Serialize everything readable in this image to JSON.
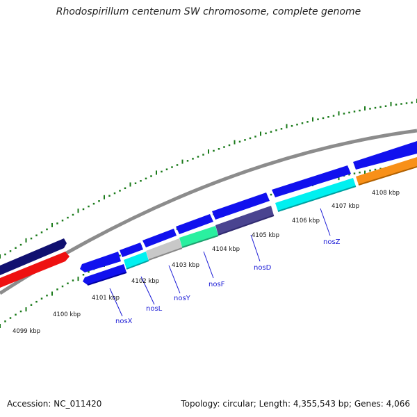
{
  "title": "Rhodospirillum centenum SW chromosome, complete genome",
  "footer": {
    "accession": "Accession: NC_011420",
    "topology": "Topology: circular; Length: 4,355,543 bp; Genes: 4,066"
  },
  "colors": {
    "backbone": "#8c8c8c",
    "tick": "#1a7a1a",
    "gene_blue": "#1111ee",
    "gene_navy": "#101070",
    "gene_red": "#ee1111",
    "gene_cyan": "#00f0f0",
    "gene_gray": "#c8c8c8",
    "gene_green": "#2af0a0",
    "gene_purple": "#4a4490",
    "gene_orange": "#f89018",
    "label_blue": "#1a1ad6"
  },
  "scale_labels": [
    {
      "kbp": 4099,
      "text": "4099 kbp"
    },
    {
      "kbp": 4100,
      "text": "4100 kbp"
    },
    {
      "kbp": 4101,
      "text": "4101 kbp"
    },
    {
      "kbp": 4102,
      "text": "4102 kbp"
    },
    {
      "kbp": 4103,
      "text": "4103 kbp"
    },
    {
      "kbp": 4104,
      "text": "4104 kbp"
    },
    {
      "kbp": 4105,
      "text": "4105 kbp"
    },
    {
      "kbp": 4106,
      "text": "4106 kbp"
    },
    {
      "kbp": 4107,
      "text": "4107 kbp"
    },
    {
      "kbp": 4108,
      "text": "4108 kbp"
    }
  ],
  "genes": [
    {
      "name": "nosX",
      "label": "nosX"
    },
    {
      "name": "nosL",
      "label": "nosL"
    },
    {
      "name": "nosY",
      "label": "nosY"
    },
    {
      "name": "nosF",
      "label": "nosF"
    },
    {
      "name": "nosD",
      "label": "nosD"
    },
    {
      "name": "nosZ",
      "label": "nosZ"
    }
  ]
}
